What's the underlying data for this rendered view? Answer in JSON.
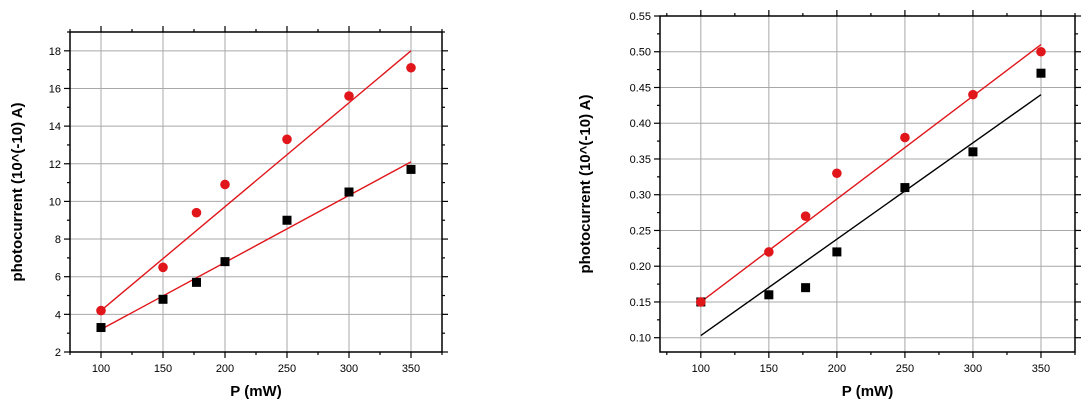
{
  "chart_data": [
    {
      "type": "scatter",
      "xlabel": "P (mW)",
      "ylabel": "photocurrent (10^(-10) A)",
      "xlim": [
        75,
        375
      ],
      "ylim": [
        2,
        19
      ],
      "x_ticks": [
        100,
        150,
        200,
        250,
        300,
        350
      ],
      "y_ticks": [
        2,
        4,
        6,
        8,
        10,
        12,
        14,
        16,
        18
      ],
      "grid": true,
      "series": [
        {
          "marker": "square",
          "color": "#000000",
          "x": [
            100,
            150,
            177,
            200,
            250,
            300,
            350
          ],
          "y": [
            3.3,
            4.8,
            5.7,
            6.8,
            9.0,
            10.5,
            11.7
          ]
        },
        {
          "marker": "circle",
          "color": "#e0161b",
          "x": [
            100,
            150,
            177,
            200,
            250,
            300,
            350
          ],
          "y": [
            4.2,
            6.5,
            9.4,
            10.9,
            13.3,
            15.6,
            17.1
          ]
        }
      ],
      "fits": [
        {
          "color": "#e0161b",
          "x": [
            100,
            350
          ],
          "y": [
            3.2,
            12.1
          ]
        },
        {
          "color": "#e0161b",
          "x": [
            100,
            350
          ],
          "y": [
            4.2,
            18.0
          ]
        }
      ]
    },
    {
      "type": "scatter",
      "xlabel": "P (mW)",
      "ylabel": "photocurrent (10^(-10) A)",
      "xlim": [
        70,
        375
      ],
      "ylim": [
        0.08,
        0.55
      ],
      "x_ticks": [
        100,
        150,
        200,
        250,
        300,
        350
      ],
      "y_ticks": [
        0.1,
        0.15,
        0.2,
        0.25,
        0.3,
        0.35,
        0.4,
        0.45,
        0.5,
        0.55
      ],
      "y_tick_labels": [
        "0.10",
        "0.15",
        "0.20",
        "0.25",
        "0.30",
        "0.35",
        "0.40",
        "0.45",
        "0.50",
        "0.55"
      ],
      "grid": true,
      "series": [
        {
          "marker": "square",
          "color": "#000000",
          "x": [
            100,
            150,
            177,
            200,
            250,
            300,
            350
          ],
          "y": [
            0.15,
            0.16,
            0.17,
            0.22,
            0.31,
            0.36,
            0.47
          ]
        },
        {
          "marker": "circle",
          "color": "#e0161b",
          "x": [
            100,
            150,
            177,
            200,
            250,
            300,
            350
          ],
          "y": [
            0.15,
            0.22,
            0.27,
            0.33,
            0.38,
            0.44,
            0.5
          ]
        }
      ],
      "fits": [
        {
          "color": "#000000",
          "x": [
            100,
            350
          ],
          "y": [
            0.103,
            0.44
          ]
        },
        {
          "color": "#e0161b",
          "x": [
            100,
            350
          ],
          "y": [
            0.15,
            0.51
          ]
        }
      ]
    }
  ]
}
